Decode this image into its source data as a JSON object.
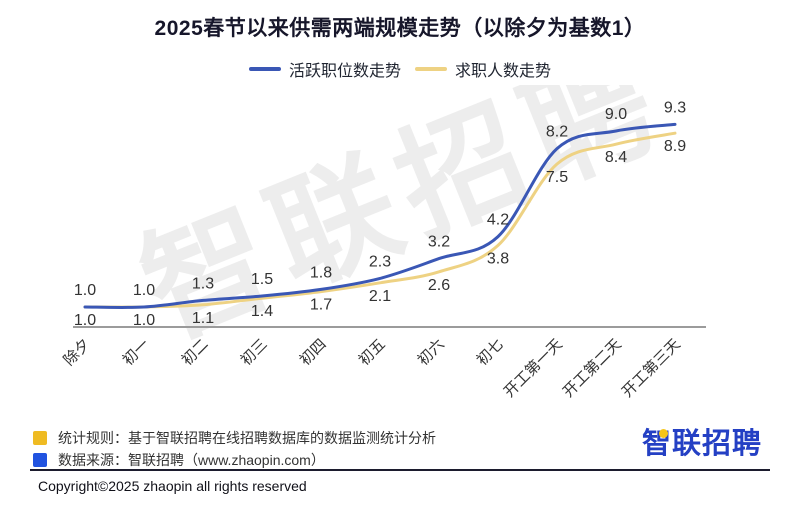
{
  "title": "2025春节以来供需两端规模走势（以除夕为基数1）",
  "chart_data": {
    "type": "line",
    "categories": [
      "除夕",
      "初一",
      "初二",
      "初三",
      "初四",
      "初五",
      "初六",
      "初七",
      "开工第一天",
      "开工第二天",
      "开工第三天"
    ],
    "series": [
      {
        "name": "活跃职位数走势",
        "color": "#3a57b5",
        "values": [
          1.0,
          1.0,
          1.3,
          1.5,
          1.8,
          2.3,
          3.2,
          4.2,
          8.2,
          9.0,
          9.3
        ]
      },
      {
        "name": "求职人数走势",
        "color": "#eed283",
        "values": [
          1.0,
          1.0,
          1.1,
          1.4,
          1.7,
          2.1,
          2.6,
          3.8,
          7.5,
          8.4,
          8.9
        ]
      }
    ],
    "title": "2025春节以来供需两端规模走势（以除夕为基数1）",
    "xlabel": "",
    "ylabel": "",
    "ylim": [
      0,
      10
    ],
    "grid": false,
    "legend_position": "top",
    "baseline_note": "以除夕为基数1",
    "watermark": "智联招聘",
    "label_color": "#333333",
    "axis_color": "#9b9b9b"
  },
  "footer": {
    "notes": [
      {
        "swatch_color": "#efbb22",
        "text": "统计规则：基于智联招聘在线招聘数据库的数据监测统计分析"
      },
      {
        "swatch_color": "#2153e0",
        "text": "数据来源：智联招聘（www.zhaopin.com）"
      }
    ],
    "logo_text": "智联招聘",
    "copyright": "Copyright©2025 zhaopin all rights reserved"
  }
}
